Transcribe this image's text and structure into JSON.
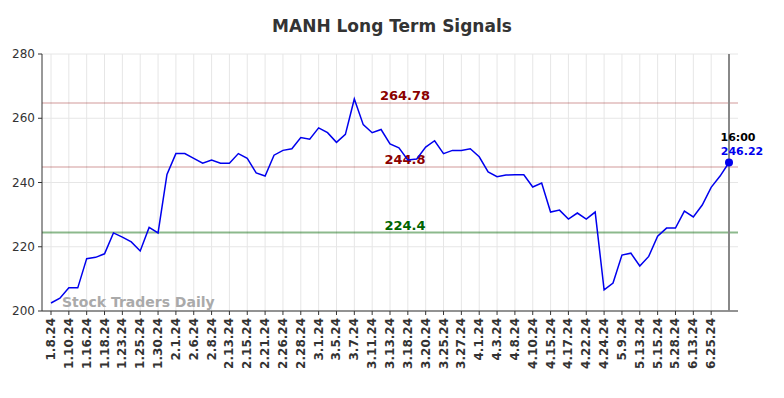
{
  "chart_data": {
    "type": "line",
    "title": "MANH Long Term Signals",
    "categories": [
      "1.8.24",
      null,
      "1.10.24",
      null,
      "1.16.24",
      null,
      "1.18.24",
      null,
      "1.23.24",
      null,
      "1.25.24",
      null,
      "1.30.24",
      null,
      "2.1.24",
      null,
      "2.6.24",
      null,
      "2.8.24",
      null,
      "2.13.24",
      null,
      "2.15.24",
      null,
      "2.21.24",
      null,
      "2.26.24",
      null,
      "2.28.24",
      null,
      "3.1.24",
      null,
      "3.5.24",
      null,
      "3.7.24",
      null,
      "3.11.24",
      null,
      "3.13.24",
      null,
      "3.18.24",
      null,
      "3.20.24",
      null,
      "3.25.24",
      null,
      "3.27.24",
      null,
      "4.1.24",
      null,
      "4.3.24",
      null,
      "4.8.24",
      null,
      "4.10.24",
      null,
      "4.15.24",
      null,
      "4.17.24",
      null,
      "4.22.24",
      null,
      "4.24.24",
      null,
      "5.9.24",
      null,
      "5.13.24",
      null,
      "5.15.24",
      null,
      "5.28.24",
      null,
      "6.13.24",
      null,
      "6.25.24",
      null,
      null
    ],
    "series": [
      {
        "name": "MANH",
        "color": "#0000ee",
        "values": [
          202.5,
          204,
          207.2,
          207.2,
          216.3,
          216.7,
          217.8,
          224.3,
          223,
          221.5,
          218.7,
          226,
          224.3,
          242.5,
          249,
          249,
          247.5,
          246,
          247,
          246,
          246,
          249,
          247.5,
          243,
          242,
          248.5,
          250,
          250.5,
          254,
          253.5,
          257,
          255.5,
          252.5,
          255,
          266,
          258,
          255.5,
          256.5,
          252,
          250.8,
          247,
          247.3,
          251,
          253,
          249,
          250,
          250,
          250.5,
          248,
          243.3,
          241.8,
          242.3,
          242.4,
          242.4,
          238.6,
          239.8,
          230.8,
          231.4,
          228.6,
          230.5,
          228.6,
          230.8,
          206.6,
          208.7,
          217.4,
          218,
          214,
          217,
          223.3,
          225.8,
          225.8,
          231.1,
          229.3,
          233,
          238.5,
          242,
          246.22
        ]
      }
    ],
    "ylim": [
      200,
      280
    ],
    "yticks": [
      200,
      220,
      240,
      260,
      280
    ],
    "grid": true,
    "reference_lines": [
      {
        "value": 264.78,
        "label": "264.78",
        "color": "#8b0000"
      },
      {
        "value": 244.8,
        "label": "244.8",
        "color": "#8b0000"
      },
      {
        "value": 224.4,
        "label": "224.4",
        "color": "#006400"
      }
    ],
    "last_point": {
      "time_label": "16:00",
      "value_label": "246.22"
    },
    "watermark": "Stock Traders Daily"
  }
}
